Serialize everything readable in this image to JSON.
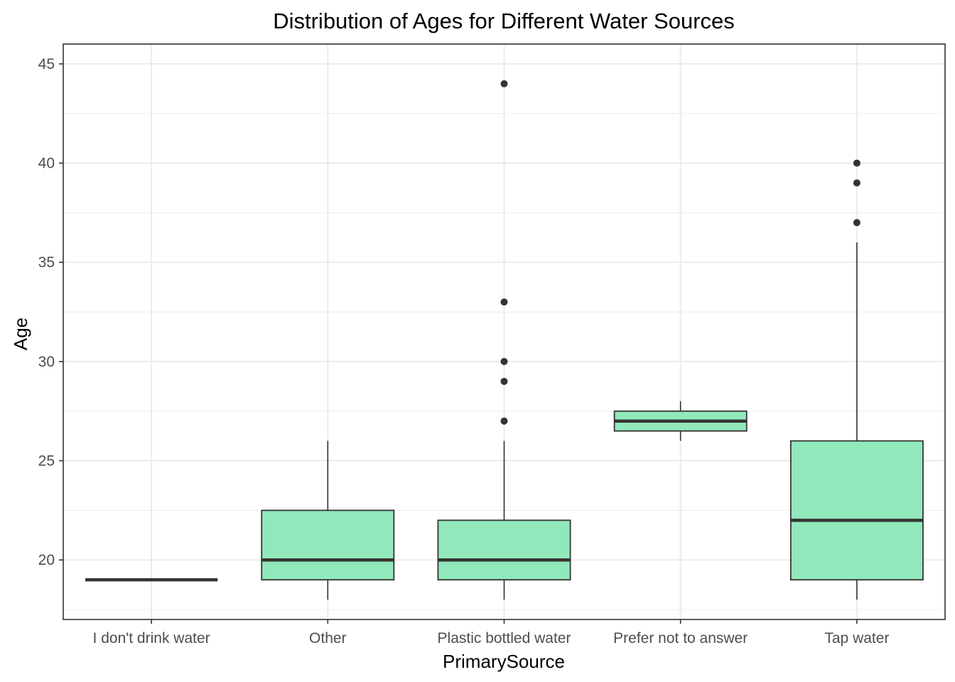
{
  "chart_data": {
    "type": "boxplot",
    "title": "Distribution of Ages for Different Water Sources",
    "xlabel": "PrimarySource",
    "ylabel": "Age",
    "ylim": [
      17.0,
      46.0
    ],
    "yticks": [
      20,
      25,
      30,
      35,
      40,
      45
    ],
    "grid": true,
    "legend": "none",
    "colors": {
      "box_fill": "#91e8bb",
      "box_stroke": "#333333",
      "grid": "#ebebeb",
      "panel_border": "#333333"
    },
    "categories": [
      "I don't drink water",
      "Other",
      "Plastic bottled water",
      "Prefer not to answer",
      "Tap water"
    ],
    "boxes": [
      {
        "category": "I don't drink water",
        "min": 19,
        "q1": 19,
        "median": 19,
        "q3": 19,
        "max": 19,
        "outliers": []
      },
      {
        "category": "Other",
        "min": 18,
        "q1": 19,
        "median": 20,
        "q3": 22.5,
        "max": 26,
        "outliers": []
      },
      {
        "category": "Plastic bottled water",
        "min": 18,
        "q1": 19,
        "median": 20,
        "q3": 22,
        "max": 26,
        "outliers": [
          27,
          29,
          30,
          33,
          44
        ]
      },
      {
        "category": "Prefer not to answer",
        "min": 26,
        "q1": 26.5,
        "median": 27,
        "q3": 27.5,
        "max": 28,
        "outliers": []
      },
      {
        "category": "Tap water",
        "min": 18,
        "q1": 19,
        "median": 22,
        "q3": 26,
        "max": 36,
        "outliers": [
          37,
          39,
          40
        ]
      }
    ]
  }
}
